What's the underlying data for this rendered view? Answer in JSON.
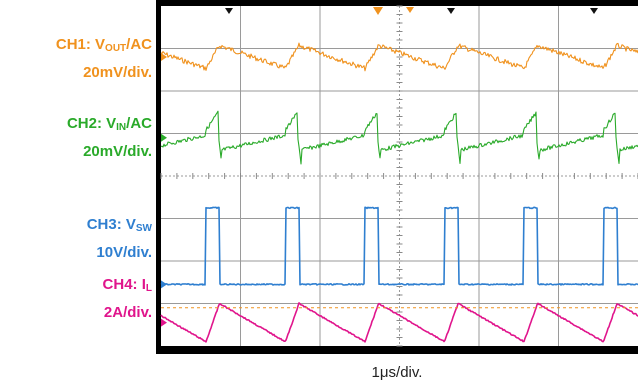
{
  "channels": [
    {
      "prefix": "CH1: V",
      "sub": "OUT",
      "suffix": "/AC",
      "scale": "20mV/div.",
      "color": "#f0921e"
    },
    {
      "prefix": "CH2: V",
      "sub": "IN",
      "suffix": "/AC",
      "scale": "20mV/div.",
      "color": "#2aaa2a"
    },
    {
      "prefix": "CH3: V",
      "sub": "SW",
      "suffix": "",
      "scale": "10V/div.",
      "color": "#2f7fd0"
    },
    {
      "prefix": "CH4: I",
      "sub": "L",
      "suffix": "",
      "scale": "2A/div.",
      "color": "#e0158c"
    }
  ],
  "chart_data": {
    "type": "line",
    "xlabel": "1μs/div.",
    "grid": true,
    "x_divisions": 6,
    "y_divisions": 8,
    "switching_period_us": 1.0,
    "duty_cycle_fraction": 0.17,
    "series": [
      {
        "name": "CH1: VOUT/AC",
        "color": "#f0921e",
        "unit": "mV",
        "waveform": "ripple (sawtooth)",
        "peak_to_peak": 12
      },
      {
        "name": "CH2: VIN/AC",
        "color": "#2aaa2a",
        "unit": "mV",
        "waveform": "spike at switching edge",
        "peak_to_peak": 24
      },
      {
        "name": "CH3: VSW",
        "color": "#2f7fd0",
        "unit": "V",
        "waveform": "pulse",
        "low": 0,
        "high": 18
      },
      {
        "name": "CH4: IL",
        "color": "#e0158c",
        "unit": "A",
        "waveform": "triangle",
        "peak_to_peak": 1.8
      }
    ]
  }
}
